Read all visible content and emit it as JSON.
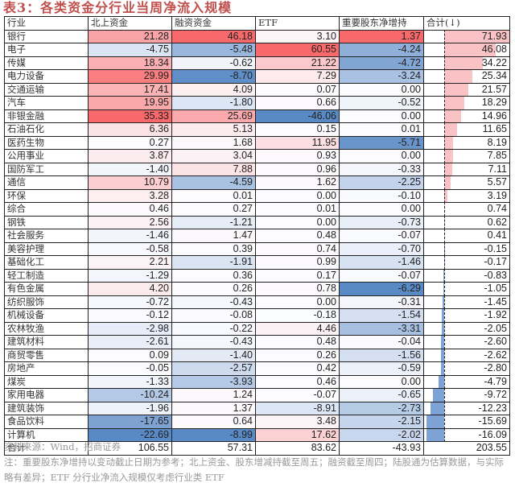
{
  "title": "表3：各类资金分行业当周净流入规模",
  "table": {
    "headers": [
      "行业",
      "北上资金",
      "融资资金",
      "ETF",
      "重要股东净增持",
      "合计(↓)"
    ],
    "rows": [
      {
        "industry": "银行",
        "northbound": "21.28",
        "margin": "46.18",
        "etf": "3.10",
        "holders": "1.37",
        "total": "71.93"
      },
      {
        "industry": "电子",
        "northbound": "-4.75",
        "margin": "-5.48",
        "etf": "60.55",
        "holders": "-4.24",
        "total": "46.08"
      },
      {
        "industry": "传媒",
        "northbound": "18.34",
        "margin": "-0.62",
        "etf": "21.22",
        "holders": "-4.72",
        "total": "34.22"
      },
      {
        "industry": "电力设备",
        "northbound": "29.99",
        "margin": "-8.70",
        "etf": "7.29",
        "holders": "-3.24",
        "total": "25.34"
      },
      {
        "industry": "交通运输",
        "northbound": "17.41",
        "margin": "4.09",
        "etf": "0.07",
        "holders": "0.00",
        "total": "21.57"
      },
      {
        "industry": "汽车",
        "northbound": "19.95",
        "margin": "-1.80",
        "etf": "0.66",
        "holders": "-0.52",
        "total": "18.29"
      },
      {
        "industry": "非银金融",
        "northbound": "35.33",
        "margin": "25.69",
        "etf": "-46.06",
        "holders": "0.00",
        "total": "14.96"
      },
      {
        "industry": "石油石化",
        "northbound": "6.36",
        "margin": "5.13",
        "etf": "0.15",
        "holders": "0.01",
        "total": "11.65"
      },
      {
        "industry": "医药生物",
        "northbound": "0.27",
        "margin": "1.68",
        "etf": "11.95",
        "holders": "-5.71",
        "total": "8.19"
      },
      {
        "industry": "公用事业",
        "northbound": "3.87",
        "margin": "3.04",
        "etf": "0.93",
        "holders": "0.00",
        "total": "7.85"
      },
      {
        "industry": "国防军工",
        "northbound": "-1.40",
        "margin": "7.88",
        "etf": "0.96",
        "holders": "-0.33",
        "total": "7.11"
      },
      {
        "industry": "通信",
        "northbound": "10.79",
        "margin": "-4.59",
        "etf": "1.62",
        "holders": "-2.25",
        "total": "5.57"
      },
      {
        "industry": "环保",
        "northbound": "3.28",
        "margin": "0.01",
        "etf": "0.00",
        "holders": "-0.10",
        "total": "3.19"
      },
      {
        "industry": "综合",
        "northbound": "0.46",
        "margin": "0.27",
        "etf": "0.01",
        "holders": "0.00",
        "total": "0.74"
      },
      {
        "industry": "钢铁",
        "northbound": "2.56",
        "margin": "-1.21",
        "etf": "0.00",
        "holders": "-0.73",
        "total": "0.62"
      },
      {
        "industry": "社会服务",
        "northbound": "-1.46",
        "margin": "1.47",
        "etf": "0.48",
        "holders": "-0.07",
        "total": "0.41"
      },
      {
        "industry": "美容护理",
        "northbound": "-0.58",
        "margin": "0.39",
        "etf": "0.74",
        "holders": "-0.70",
        "total": "-0.15"
      },
      {
        "industry": "基础化工",
        "northbound": "2.21",
        "margin": "-1.91",
        "etf": "0.99",
        "holders": "-1.46",
        "total": "-0.17"
      },
      {
        "industry": "轻工制造",
        "northbound": "-1.29",
        "margin": "0.36",
        "etf": "0.17",
        "holders": "-0.07",
        "total": "-0.83"
      },
      {
        "industry": "有色金属",
        "northbound": "4.20",
        "margin": "0.26",
        "etf": "0.78",
        "holders": "-6.29",
        "total": "-1.05"
      },
      {
        "industry": "纺织服饰",
        "northbound": "-0.72",
        "margin": "-0.43",
        "etf": "0.00",
        "holders": "-0.31",
        "total": "-1.45"
      },
      {
        "industry": "机械设备",
        "northbound": "-0.12",
        "margin": "-0.08",
        "etf": "-0.18",
        "holders": "-1.54",
        "total": "-1.92"
      },
      {
        "industry": "农林牧渔",
        "northbound": "-2.98",
        "margin": "-0.22",
        "etf": "4.46",
        "holders": "-3.31",
        "total": "-2.05"
      },
      {
        "industry": "建筑材料",
        "northbound": "-2.61",
        "margin": "-0.43",
        "etf": "0.48",
        "holders": "-0.04",
        "total": "-2.60"
      },
      {
        "industry": "商贸零售",
        "northbound": "0.09",
        "margin": "-1.40",
        "etf": "0.26",
        "holders": "-1.56",
        "total": "-2.62"
      },
      {
        "industry": "房地产",
        "northbound": "-0.05",
        "margin": "-2.57",
        "etf": "0.42",
        "holders": "-0.59",
        "total": "-2.80"
      },
      {
        "industry": "煤炭",
        "northbound": "-1.33",
        "margin": "-3.93",
        "etf": "0.46",
        "holders": "0.00",
        "total": "-4.79"
      },
      {
        "industry": "家用电器",
        "northbound": "-10.24",
        "margin": "1.24",
        "etf": "-0.07",
        "holders": "-0.65",
        "total": "-9.72"
      },
      {
        "industry": "建筑装饰",
        "northbound": "-1.96",
        "margin": "1.37",
        "etf": "-8.91",
        "holders": "-2.73",
        "total": "-12.23"
      },
      {
        "industry": "食品饮料",
        "northbound": "-17.65",
        "margin": "0.64",
        "etf": "3.48",
        "holders": "-2.15",
        "total": "-15.69"
      },
      {
        "industry": "计算机",
        "northbound": "-22.69",
        "margin": "-8.99",
        "etf": "17.62",
        "holders": "-2.02",
        "total": "-16.09"
      }
    ],
    "total_row": {
      "industry": "合计",
      "northbound": "106.55",
      "margin": "57.31",
      "etf": "83.62",
      "holders": "-43.93",
      "total": "203.55"
    }
  },
  "colors": {
    "positive": "#f8696b",
    "negative": "#5a8ac6",
    "neutral": "#fcfcff",
    "bar_positive": "#f9c3c6",
    "bar_negative": "#7da2d6",
    "title": "#c0504d"
  },
  "footer": {
    "source": "资料来源：Wind，招商证券",
    "note": "注：重要股东净增持以变动截止日期为参考；北上资金、股东增减持截至周五；融资截至周四；陆股通为估算数据，与实际略有差异；ETF 分行业净流入规模仅考虑行业类 ETF"
  }
}
